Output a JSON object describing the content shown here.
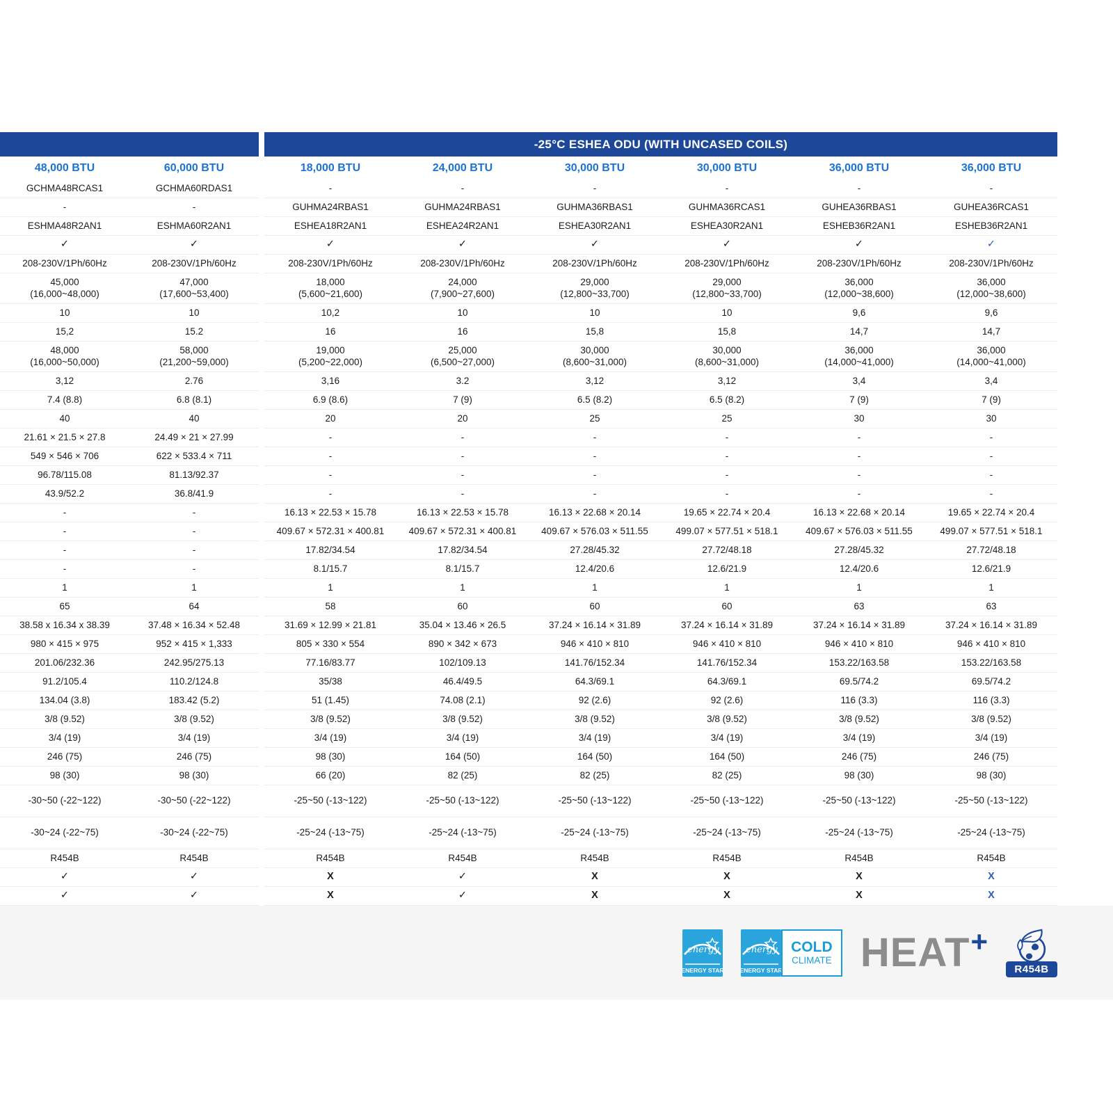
{
  "table": {
    "header_title": "-25°C ESHEA ODU (WITH UNCASED COILS)",
    "column_headers": [
      "48,000 BTU",
      "60,000 BTU",
      "18,000 BTU",
      "24,000 BTU",
      "30,000 BTU",
      "30,000 BTU",
      "36,000 BTU",
      "36,000 BTU"
    ],
    "rows": [
      {
        "type": "n",
        "cells": [
          "GCHMA48RCAS1",
          "GCHMA60RDAS1",
          "-",
          "-",
          "-",
          "-",
          "-",
          "-"
        ]
      },
      {
        "type": "n",
        "cells": [
          "-",
          "-",
          "GUHMA24RBAS1",
          "GUHMA24RBAS1",
          "GUHMA36RBAS1",
          "GUHMA36RCAS1",
          "GUHEA36RBAS1",
          "GUHEA36RCAS1"
        ]
      },
      {
        "type": "n",
        "cells": [
          "ESHMA48R2AN1",
          "ESHMA60R2AN1",
          "ESHEA18R2AN1",
          "ESHEA24R2AN1",
          "ESHEA30R2AN1",
          "ESHEA30R2AN1",
          "ESHEB36R2AN1",
          "ESHEB36R2AN1"
        ]
      },
      {
        "type": "c",
        "accent_cols": [
          7
        ],
        "cells": [
          "✓",
          "✓",
          "✓",
          "✓",
          "✓",
          "✓",
          "✓",
          "✓"
        ]
      },
      {
        "type": "n",
        "cells": [
          "208-230V/1Ph/60Hz",
          "208-230V/1Ph/60Hz",
          "208-230V/1Ph/60Hz",
          "208-230V/1Ph/60Hz",
          "208-230V/1Ph/60Hz",
          "208-230V/1Ph/60Hz",
          "208-230V/1Ph/60Hz",
          "208-230V/1Ph/60Hz"
        ]
      },
      {
        "type": "d",
        "cells": [
          "45,000\n(16,000~48,000)",
          "47,000\n(17,600~53,400)",
          "18,000\n(5,600~21,600)",
          "24,000\n(7,900~27,600)",
          "29,000\n(12,800~33,700)",
          "29,000\n(12,800~33,700)",
          "36,000\n(12,000~38,600)",
          "36,000\n(12,000~38,600)"
        ]
      },
      {
        "type": "n",
        "cells": [
          "10",
          "10",
          "10,2",
          "10",
          "10",
          "10",
          "9,6",
          "9,6"
        ]
      },
      {
        "type": "n",
        "cells": [
          "15,2",
          "15.2",
          "16",
          "16",
          "15,8",
          "15,8",
          "14,7",
          "14,7"
        ]
      },
      {
        "type": "d",
        "cells": [
          "48,000\n(16,000~50,000)",
          "58,000\n(21,200~59,000)",
          "19,000\n(5,200~22,000)",
          "25,000\n(6,500~27,000)",
          "30,000\n(8,600~31,000)",
          "30,000\n(8,600~31,000)",
          "36,000\n(14,000~41,000)",
          "36,000\n(14,000~41,000)"
        ]
      },
      {
        "type": "n",
        "cells": [
          "3,12",
          "2.76",
          "3,16",
          "3.2",
          "3,12",
          "3,12",
          "3,4",
          "3,4"
        ]
      },
      {
        "type": "n",
        "cells": [
          "7.4 (8.8)",
          "6.8 (8.1)",
          "6.9 (8.6)",
          "7 (9)",
          "6.5 (8.2)",
          "6.5 (8.2)",
          "7 (9)",
          "7 (9)"
        ]
      },
      {
        "type": "n",
        "cells": [
          "40",
          "40",
          "20",
          "20",
          "25",
          "25",
          "30",
          "30"
        ]
      },
      {
        "type": "n",
        "cells": [
          "21.61 × 21.5 × 27.8",
          "24.49 × 21 × 27.99",
          "-",
          "-",
          "-",
          "-",
          "-",
          "-"
        ]
      },
      {
        "type": "n",
        "cells": [
          "549 × 546 × 706",
          "622 × 533.4 × 711",
          "-",
          "-",
          "-",
          "-",
          "-",
          "-"
        ]
      },
      {
        "type": "n",
        "cells": [
          "96.78/115.08",
          "81.13/92.37",
          "-",
          "-",
          "-",
          "-",
          "-",
          "-"
        ]
      },
      {
        "type": "n",
        "cells": [
          "43.9/52.2",
          "36.8/41.9",
          "-",
          "-",
          "-",
          "-",
          "-",
          "-"
        ]
      },
      {
        "type": "n",
        "cells": [
          "-",
          "-",
          "16.13 × 22.53 × 15.78",
          "16.13 × 22.53 × 15.78",
          "16.13 × 22.68 × 20.14",
          "19.65 × 22.74 × 20.4",
          "16.13 × 22.68 × 20.14",
          "19.65 × 22.74 × 20.4"
        ]
      },
      {
        "type": "n",
        "cells": [
          "-",
          "-",
          "409.67 × 572.31 × 400.81",
          "409.67 × 572.31 × 400.81",
          "409.67 × 576.03 × 511.55",
          "499.07 × 577.51 × 518.1",
          "409.67 × 576.03 × 511.55",
          "499.07 × 577.51 × 518.1"
        ]
      },
      {
        "type": "n",
        "cells": [
          "-",
          "-",
          "17.82/34.54",
          "17.82/34.54",
          "27.28/45.32",
          "27.72/48.18",
          "27.28/45.32",
          "27.72/48.18"
        ]
      },
      {
        "type": "n",
        "cells": [
          "-",
          "-",
          "8.1/15.7",
          "8.1/15.7",
          "12.4/20.6",
          "12.6/21.9",
          "12.4/20.6",
          "12.6/21.9"
        ]
      },
      {
        "type": "n",
        "cells": [
          "1",
          "1",
          "1",
          "1",
          "1",
          "1",
          "1",
          "1"
        ]
      },
      {
        "type": "n",
        "cells": [
          "65",
          "64",
          "58",
          "60",
          "60",
          "60",
          "63",
          "63"
        ]
      },
      {
        "type": "n",
        "cells": [
          "38.58 x 16.34 x 38.39",
          "37.48 × 16.34 × 52.48",
          "31.69 × 12.99 × 21.81",
          "35.04 × 13.46 × 26.5",
          "37.24 × 16.14 × 31.89",
          "37.24 × 16.14 × 31.89",
          "37.24 × 16.14 × 31.89",
          "37.24 × 16.14 × 31.89"
        ]
      },
      {
        "type": "n",
        "cells": [
          "980 × 415 × 975",
          "952 × 415 × 1,333",
          "805 × 330 × 554",
          "890 × 342 × 673",
          "946 × 410 × 810",
          "946 × 410 × 810",
          "946 × 410 × 810",
          "946 × 410 × 810"
        ]
      },
      {
        "type": "n",
        "cells": [
          "201.06/232.36",
          "242.95/275.13",
          "77.16/83.77",
          "102/109.13",
          "141.76/152.34",
          "141.76/152.34",
          "153.22/163.58",
          "153.22/163.58"
        ]
      },
      {
        "type": "n",
        "cells": [
          "91.2/105.4",
          "110.2/124.8",
          "35/38",
          "46.4/49.5",
          "64.3/69.1",
          "64.3/69.1",
          "69.5/74.2",
          "69.5/74.2"
        ]
      },
      {
        "type": "n",
        "cells": [
          "134.04 (3.8)",
          "183.42 (5.2)",
          "51 (1.45)",
          "74.08 (2.1)",
          "92 (2.6)",
          "92 (2.6)",
          "116 (3.3)",
          "116 (3.3)"
        ]
      },
      {
        "type": "n",
        "cells": [
          "3/8 (9.52)",
          "3/8 (9.52)",
          "3/8 (9.52)",
          "3/8 (9.52)",
          "3/8 (9.52)",
          "3/8 (9.52)",
          "3/8 (9.52)",
          "3/8 (9.52)"
        ]
      },
      {
        "type": "n",
        "cells": [
          "3/4 (19)",
          "3/4 (19)",
          "3/4 (19)",
          "3/4 (19)",
          "3/4 (19)",
          "3/4 (19)",
          "3/4 (19)",
          "3/4 (19)"
        ]
      },
      {
        "type": "n",
        "cells": [
          "246 (75)",
          "246 (75)",
          "98 (30)",
          "164 (50)",
          "164 (50)",
          "164 (50)",
          "246 (75)",
          "246 (75)"
        ]
      },
      {
        "type": "n",
        "cells": [
          "98 (30)",
          "98 (30)",
          "66 (20)",
          "82 (25)",
          "82 (25)",
          "82 (25)",
          "98 (30)",
          "98 (30)"
        ]
      },
      {
        "type": "t",
        "cells": [
          "-30~50 (-22~122)",
          "-30~50 (-22~122)",
          "-25~50 (-13~122)",
          "-25~50 (-13~122)",
          "-25~50 (-13~122)",
          "-25~50 (-13~122)",
          "-25~50 (-13~122)",
          "-25~50 (-13~122)"
        ]
      },
      {
        "type": "t",
        "cells": [
          "-30~24 (-22~75)",
          "-30~24 (-22~75)",
          "-25~24 (-13~75)",
          "-25~24 (-13~75)",
          "-25~24 (-13~75)",
          "-25~24 (-13~75)",
          "-25~24 (-13~75)",
          "-25~24 (-13~75)"
        ]
      },
      {
        "type": "n",
        "cells": [
          "R454B",
          "R454B",
          "R454B",
          "R454B",
          "R454B",
          "R454B",
          "R454B",
          "R454B"
        ]
      },
      {
        "type": "c",
        "accent_cols": [
          7
        ],
        "cells": [
          "✓",
          "✓",
          "X",
          "✓",
          "X",
          "X",
          "X",
          "X"
        ]
      },
      {
        "type": "c",
        "accent_cols": [
          7
        ],
        "cells": [
          "✓",
          "✓",
          "X",
          "✓",
          "X",
          "X",
          "X",
          "X"
        ]
      }
    ]
  },
  "footer": {
    "energy_star": {
      "script_word": "energy",
      "caption": "ENERGY STAR"
    },
    "cold_climate": {
      "script_word": "energy",
      "caption": "ENERGY STAR",
      "line1": "COLD",
      "line2": "CLIMATE"
    },
    "heat_lockup": {
      "text": "HEAT",
      "plus": "+"
    },
    "refrigerant_badge": {
      "label": "R454B"
    }
  },
  "colors": {
    "header_bar_blue": "#1d4798",
    "btu_blue": "#1b74d4",
    "accent_check_blue": "#2a5db8",
    "energy_star_blue": "#29a4dd",
    "cold_climate_blue": "#1b9cd8",
    "heat_gray": "#8c8c8c",
    "navy": "#1d4798",
    "footer_band": "#f5f5f6",
    "row_divider": "#ececec"
  }
}
